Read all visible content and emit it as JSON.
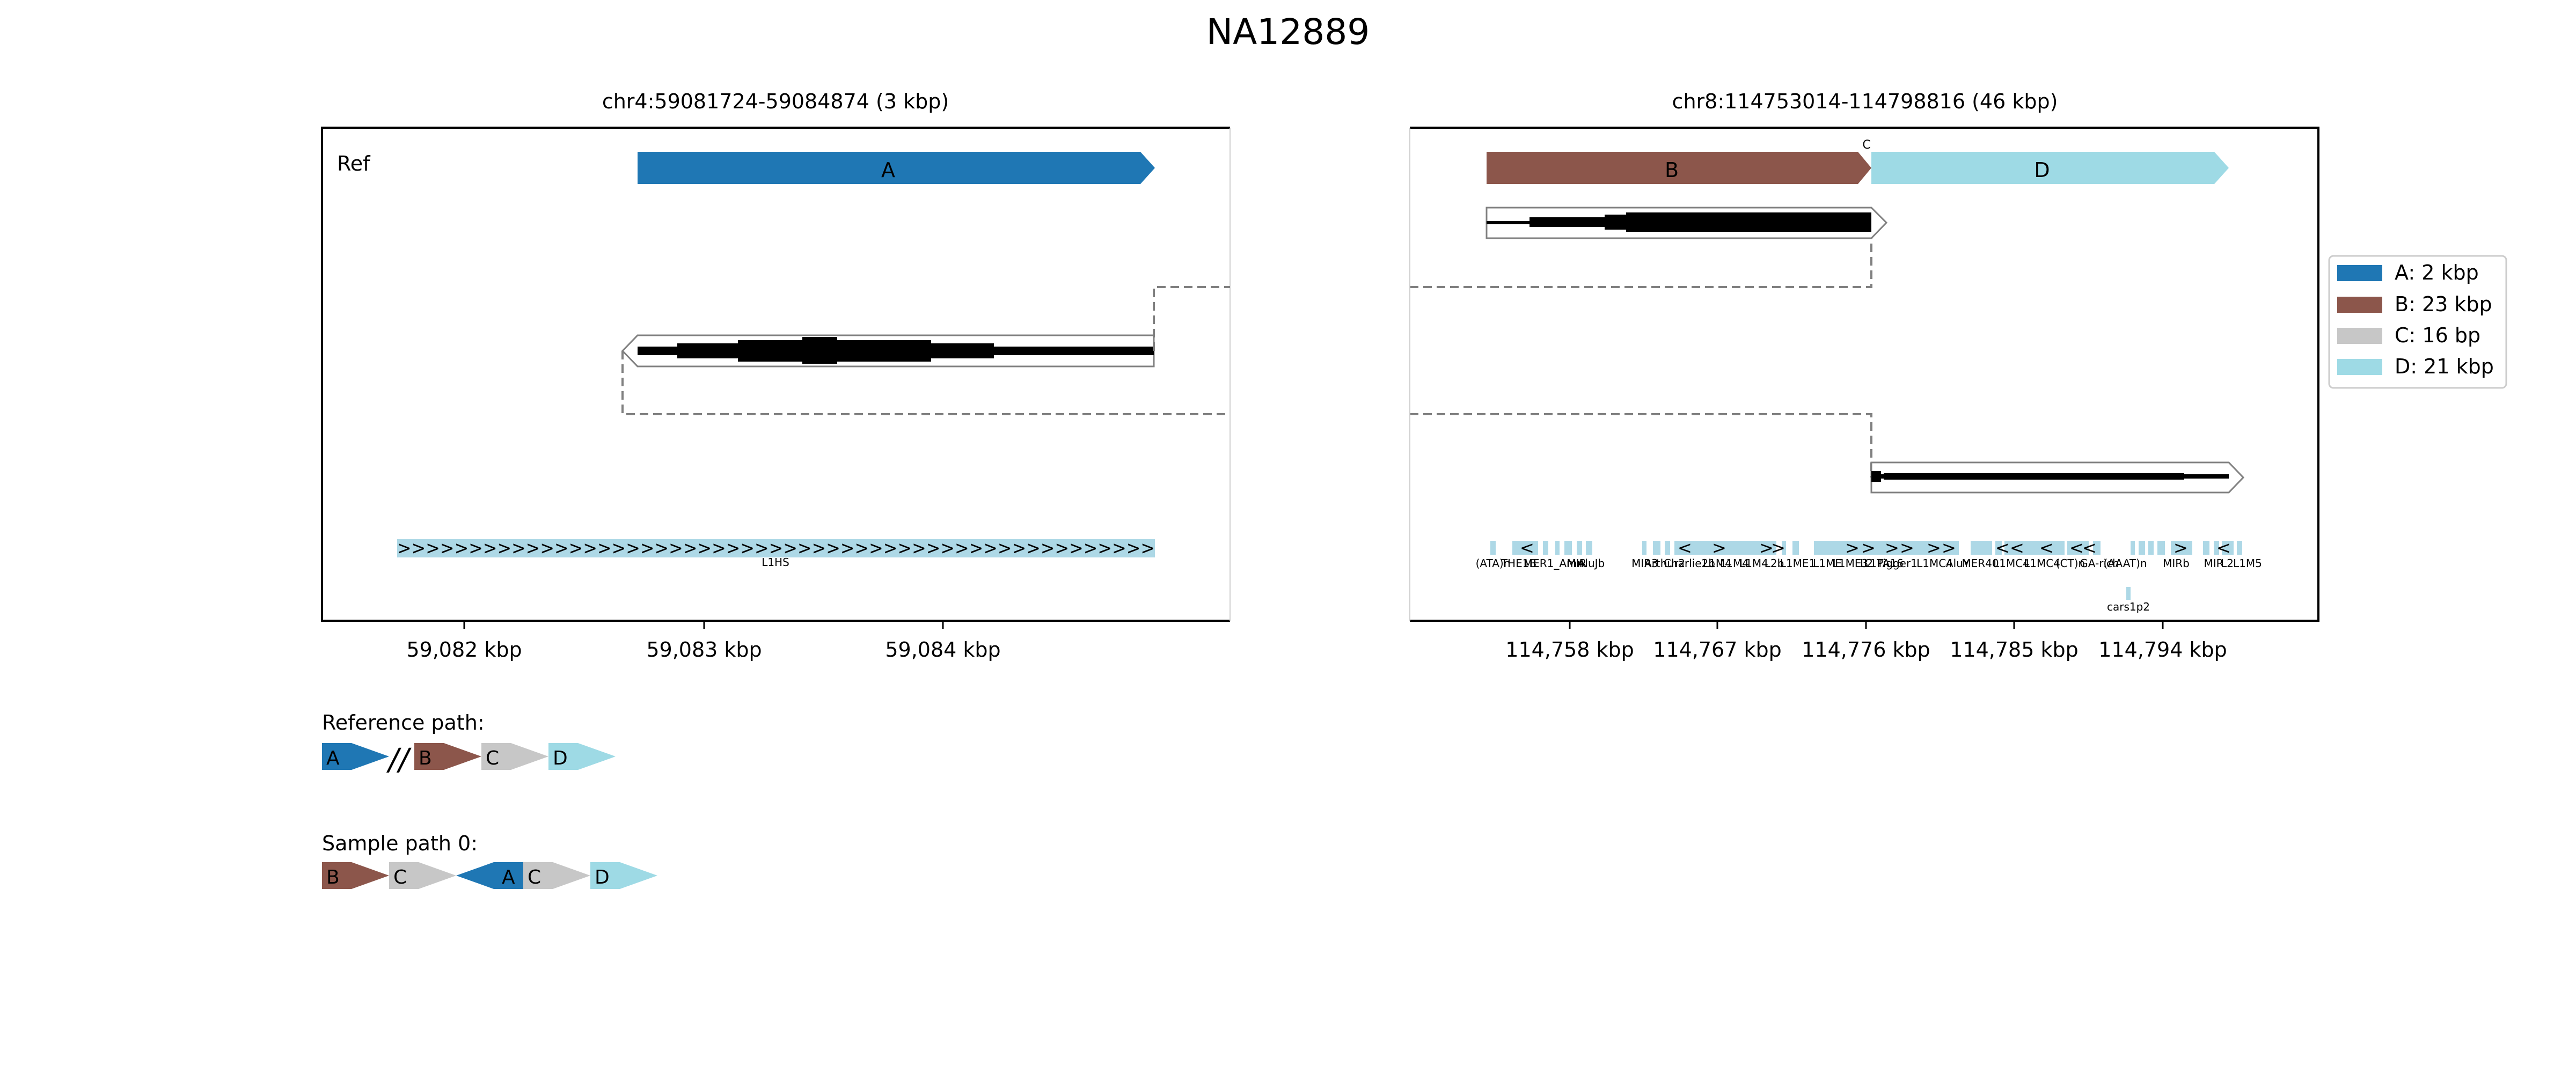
{
  "title": "NA12889",
  "colors": {
    "A": "#1f77b4",
    "B": "#8c564b",
    "C": "#c7c7c7",
    "D": "#9edae5",
    "repeat": "#add8e6",
    "frame": "#000000",
    "connector": "#808080"
  },
  "left_panel": {
    "title": "chr4:59081724-59084874 (3 kbp)",
    "ref_label": "Ref",
    "ticks": [
      "59,082 kbp",
      "59,083 kbp",
      "59,084 kbp"
    ],
    "segment_label": "A",
    "repeat_arrows": ">>>>>>>>>>>>>>>>>>>>>>>>>>>>>>>>>>>>>>>>>>>>>>>>>>>>>",
    "repeat_label": "L1HS"
  },
  "right_panel": {
    "title": "chr8:114753014-114798816 (46 kbp)",
    "segment_labels": [
      "B",
      "C",
      "D"
    ],
    "ticks": [
      "114,758 kbp",
      "114,767 kbp",
      "114,776 kbp",
      "114,785 kbp",
      "114,794 kbp"
    ],
    "repeat_labels": [
      "(ATA)n",
      "THE1B",
      "MER1_Amn",
      "MIR",
      "AluJb",
      "MIR3",
      "Arthur2",
      "Charlie2b",
      "L1M4",
      "L1M4",
      "L1M4",
      "L2b",
      "L1ME1",
      "L1ME",
      "L1ME3",
      "L2",
      "Tigger1",
      "L1PA16",
      "L1MC4",
      "AluY",
      "MER40",
      "L1MC4",
      "L1MC4",
      "(CT)n",
      "GA-rich",
      "(AAAT)n",
      "MIRb",
      "MIR",
      "L2",
      "L1M5"
    ],
    "repeat_arrows": [
      "<",
      ">",
      ">",
      "<",
      ">",
      ">",
      ">",
      ">",
      ">",
      ">",
      ">",
      "<",
      "<",
      "<",
      "<",
      "<",
      ">",
      "<"
    ],
    "gene_label": "cars1p2"
  },
  "legend": [
    {
      "key": "A",
      "label": "A: 2 kbp"
    },
    {
      "key": "B",
      "label": "B: 23 kbp"
    },
    {
      "key": "C",
      "label": "C: 16 bp"
    },
    {
      "key": "D",
      "label": "D: 21 kbp"
    }
  ],
  "paths": {
    "reference": {
      "label": "Reference path:",
      "segments": [
        "A",
        "B",
        "C",
        "D"
      ],
      "break_mark": "//"
    },
    "sample": {
      "label": "Sample path 0:",
      "segments": [
        "B",
        "C",
        "A",
        "C",
        "D"
      ]
    }
  }
}
